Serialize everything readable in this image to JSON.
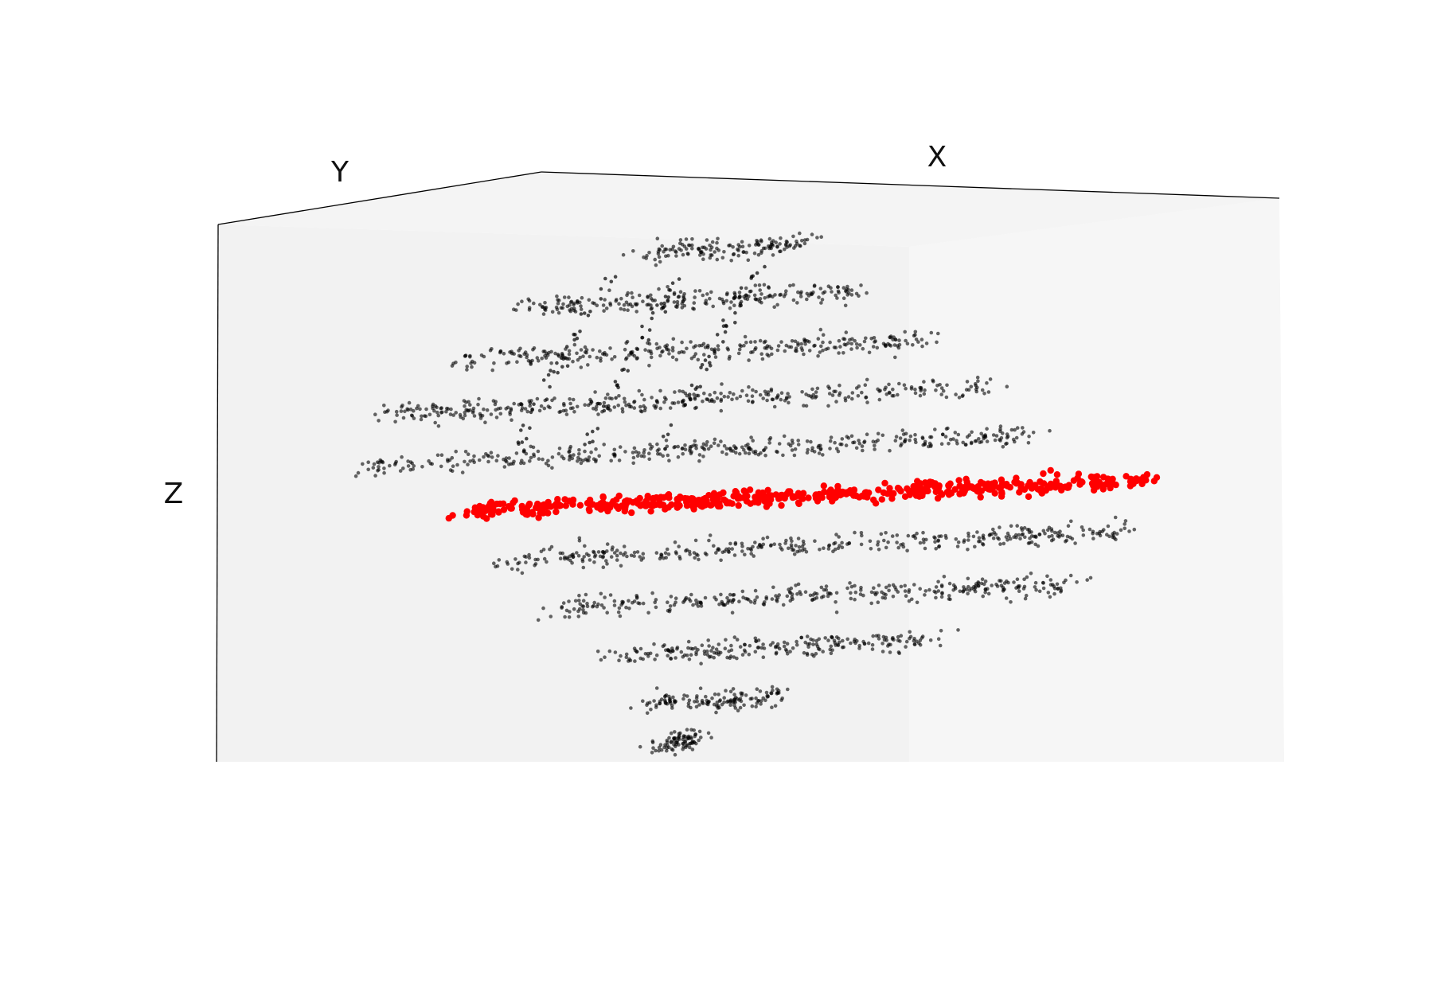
{
  "chart_data": {
    "type": "scatter",
    "projection": "3d",
    "title": "",
    "xlabel": "X",
    "ylabel": "Y",
    "zlabel": "Z",
    "grid": false,
    "ticks": false,
    "colors": {
      "series": "#000000",
      "highlight": "#ff0000",
      "pane_left": "#f2f2f2",
      "pane_right": "#f6f6f6",
      "pane_top": "#f4f4f4"
    },
    "series": [
      {
        "style": "layers",
        "color": "#000000",
        "layers": [
          {
            "z": 5,
            "x": [
              -0.35,
              0.15
            ]
          },
          {
            "z": 4,
            "x": [
              -0.75,
              0.35
            ]
          },
          {
            "z": 3,
            "x": [
              -0.95,
              0.55
            ]
          },
          {
            "z": 2,
            "x": [
              -1.2,
              0.75
            ]
          },
          {
            "z": 1,
            "x": [
              -1.25,
              0.9
            ]
          },
          {
            "z": -1,
            "x": [
              -0.8,
              1.2
            ]
          },
          {
            "z": -2,
            "x": [
              -0.65,
              1.05
            ]
          },
          {
            "z": -3,
            "x": [
              -0.45,
              0.6
            ]
          },
          {
            "z": -4,
            "x": [
              -0.35,
              0.1
            ]
          },
          {
            "z": -4.8,
            "x": [
              -0.3,
              -0.2
            ]
          }
        ]
      },
      {
        "style": "layers",
        "color": "#ff0000",
        "layers": [
          {
            "z": 0,
            "x": [
              -0.95,
              1.25
            ]
          }
        ]
      }
    ]
  }
}
